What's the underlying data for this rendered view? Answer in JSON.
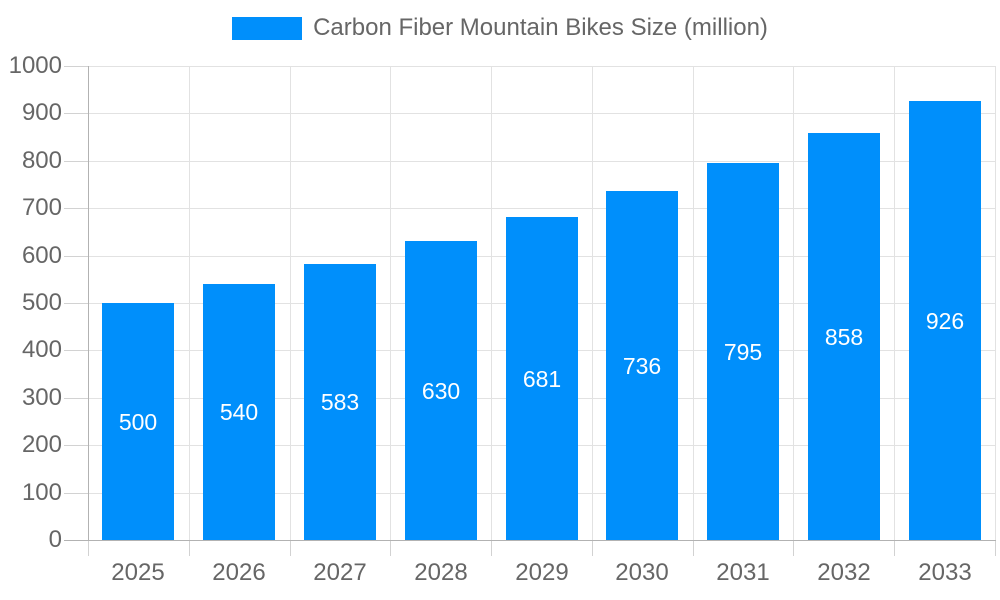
{
  "legend": {
    "label": "Carbon Fiber Mountain Bikes Size (million)",
    "swatch_color": "#008FFB"
  },
  "chart_data": {
    "type": "bar",
    "title": "Carbon Fiber Mountain Bikes Size (million)",
    "series_name": "Carbon Fiber Mountain Bikes Size (million)",
    "categories": [
      "2025",
      "2026",
      "2027",
      "2028",
      "2029",
      "2030",
      "2031",
      "2032",
      "2033"
    ],
    "values": [
      500,
      540,
      583,
      630,
      681,
      736,
      795,
      858,
      926
    ],
    "data_labels": [
      "500",
      "540",
      "583",
      "630",
      "681",
      "736",
      "795",
      "858",
      "926"
    ],
    "xlabel": "",
    "ylabel": "",
    "ylim": [
      0,
      1000
    ],
    "y_tick_step": 100,
    "y_tick_labels": [
      "0",
      "100",
      "200",
      "300",
      "400",
      "500",
      "600",
      "700",
      "800",
      "900",
      "1000"
    ],
    "grid": true,
    "legend_position": "top",
    "colors": {
      "bar": "#008FFB",
      "bar_label": "#ffffff",
      "axis_text": "#666666",
      "grid_line": "#e2e2e2",
      "tick_line": "#d2d2d2",
      "axis_line": "#b2b2b2",
      "background": "#ffffff"
    }
  }
}
